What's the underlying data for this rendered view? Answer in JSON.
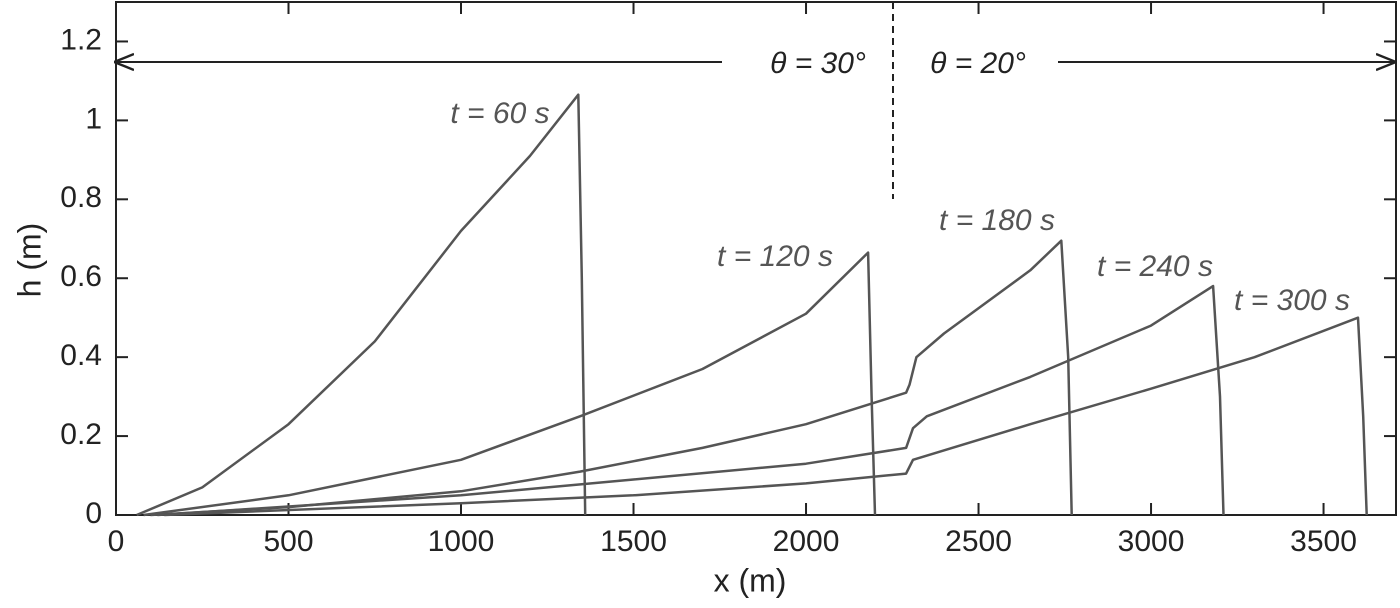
{
  "chart_data": {
    "type": "line",
    "xlabel": "x (m)",
    "ylabel": "h (m)",
    "xlim": [
      0,
      3710
    ],
    "ylim": [
      0,
      1.3
    ],
    "xticks": [
      0,
      500,
      1000,
      1500,
      2000,
      2500,
      3000,
      3500
    ],
    "yticks": [
      0,
      0.2,
      0.4,
      0.6,
      0.8,
      1,
      1.2
    ],
    "annotations": [
      "t = 60 s",
      "t = 120 s",
      "t = 180 s",
      "t = 240 s",
      "t = 300 s",
      "θ = 30°",
      "θ = 20°"
    ],
    "series": [
      {
        "name": "t = 60 s",
        "color": "#555555",
        "x": [
          60,
          250,
          500,
          750,
          1000,
          1200,
          1340,
          1350,
          1360
        ],
        "values": [
          0,
          0.07,
          0.23,
          0.44,
          0.72,
          0.91,
          1.065,
          0.6,
          0
        ]
      },
      {
        "name": "t = 120 s",
        "color": "#555555",
        "x": [
          80,
          500,
          1000,
          1345,
          1700,
          2000,
          2180,
          2190,
          2200
        ],
        "values": [
          0,
          0.05,
          0.14,
          0.25,
          0.37,
          0.51,
          0.665,
          0.3,
          0
        ]
      },
      {
        "name": "t = 180 s",
        "color": "#555555",
        "x": [
          100,
          500,
          1000,
          1345,
          1700,
          2000,
          2290,
          2300,
          2320,
          2400,
          2650,
          2740,
          2760,
          2770
        ],
        "values": [
          0,
          0.02,
          0.06,
          0.11,
          0.17,
          0.23,
          0.31,
          0.33,
          0.4,
          0.46,
          0.62,
          0.695,
          0.4,
          0
        ]
      },
      {
        "name": "t = 240 s",
        "color": "#555555",
        "x": [
          120,
          1000,
          1500,
          2000,
          2290,
          2310,
          2350,
          2650,
          3000,
          3180,
          3200,
          3210
        ],
        "values": [
          0,
          0.05,
          0.09,
          0.13,
          0.17,
          0.22,
          0.25,
          0.35,
          0.48,
          0.58,
          0.3,
          0
        ]
      },
      {
        "name": "t = 300 s",
        "color": "#555555",
        "x": [
          140,
          1000,
          1500,
          2000,
          2290,
          2310,
          2650,
          3000,
          3300,
          3600,
          3615,
          3625
        ],
        "values": [
          0,
          0.03,
          0.05,
          0.08,
          0.105,
          0.14,
          0.23,
          0.32,
          0.4,
          0.5,
          0.25,
          0
        ]
      }
    ]
  }
}
